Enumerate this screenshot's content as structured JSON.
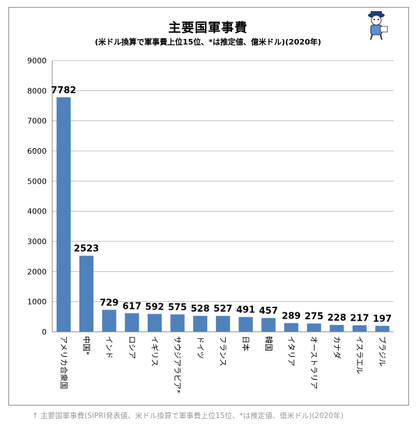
{
  "title": "主要国軍事費",
  "subtitle": "(米ドル換算で軍事費上位15位、*は推定値、億米ドル)(2020年)",
  "caption": "↑ 主要国軍事費(SIPRI発表値、米ドル換算で軍事費上位15位、*は推定値、億米ドル)(2020年)",
  "mascot_icon": "mascot-character-icon",
  "colors": {
    "bar": "#4f81bd",
    "grid": "#bfbfbf",
    "axis": "#868686",
    "caption": "#9a9a9a"
  },
  "chart_data": {
    "type": "bar",
    "categories": [
      "アメリカ合衆国",
      "中国*",
      "インド",
      "ロシア",
      "イギリス",
      "サウジアラビア*",
      "ドイツ",
      "フランス",
      "日本",
      "韓国",
      "イタリア",
      "オーストラリア",
      "カナダ",
      "イスラエル",
      "ブラジル"
    ],
    "values": [
      7782,
      2523,
      729,
      617,
      592,
      575,
      528,
      527,
      491,
      457,
      289,
      275,
      228,
      217,
      197
    ],
    "title": "主要国軍事費",
    "subtitle": "(米ドル換算で軍事費上位15位、*は推定値、億米ドル)(2020年)",
    "xlabel": "",
    "ylabel": "",
    "ylim": [
      0,
      9000
    ],
    "yticks": [
      0,
      1000,
      2000,
      3000,
      4000,
      5000,
      6000,
      7000,
      8000,
      9000
    ],
    "grid": true,
    "legend": "none",
    "data_labels": true
  }
}
